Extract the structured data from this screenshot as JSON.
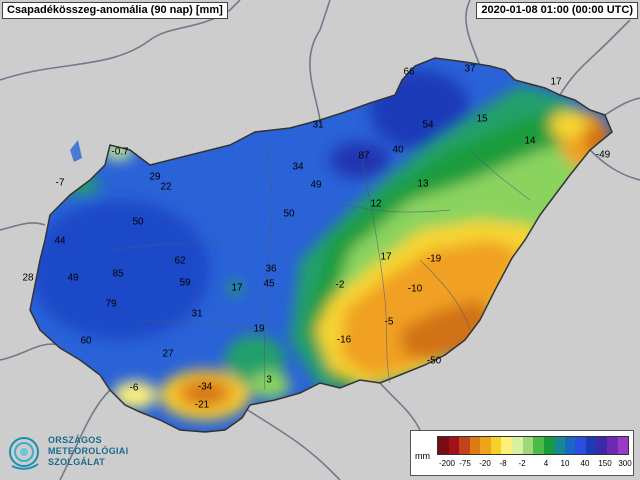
{
  "title": "Csapadékösszeg-anomália (90 nap) [mm]",
  "timestamp": "2020-01-08 01:00 (00:00 UTC)",
  "legend": {
    "unit": "mm",
    "colors": [
      "#7a0d14",
      "#a3121a",
      "#c2421a",
      "#dc7a14",
      "#f0a21a",
      "#f7cf2a",
      "#fbf07a",
      "#d8f0a0",
      "#9ed87a",
      "#4cbb46",
      "#189b3a",
      "#148a8e",
      "#1d66c4",
      "#2a4fe0",
      "#1f3ab8",
      "#3a2aa8",
      "#6a2ab4",
      "#9a3ac4"
    ],
    "ticks": [
      "-200",
      "-75",
      "-20",
      "-8",
      "-2",
      "4",
      "10",
      "40",
      "150",
      "300"
    ]
  },
  "labels": [
    {
      "text": "66"
    },
    {
      "text": "37"
    },
    {
      "text": "17"
    },
    {
      "text": "31"
    },
    {
      "text": "54"
    },
    {
      "text": "15"
    },
    {
      "text": "-0.7"
    },
    {
      "text": "87"
    },
    {
      "text": "40"
    },
    {
      "text": "14"
    },
    {
      "text": "-49"
    },
    {
      "text": "34"
    },
    {
      "text": "29"
    },
    {
      "text": "-7"
    },
    {
      "text": "22"
    },
    {
      "text": "49"
    },
    {
      "text": "13"
    },
    {
      "text": "12"
    },
    {
      "text": "50"
    },
    {
      "text": "50"
    },
    {
      "text": "44"
    },
    {
      "text": "62"
    },
    {
      "text": "-19"
    },
    {
      "text": "17"
    },
    {
      "text": "36"
    },
    {
      "text": "28"
    },
    {
      "text": "49"
    },
    {
      "text": "85"
    },
    {
      "text": "59"
    },
    {
      "text": "17"
    },
    {
      "text": "45"
    },
    {
      "text": "-2"
    },
    {
      "text": "-10"
    },
    {
      "text": "79"
    },
    {
      "text": "31"
    },
    {
      "text": "-5"
    },
    {
      "text": "60"
    },
    {
      "text": "19"
    },
    {
      "text": "-16"
    },
    {
      "text": "27"
    },
    {
      "text": "-50"
    },
    {
      "text": "-6"
    },
    {
      "text": "-34"
    },
    {
      "text": "3"
    },
    {
      "text": "-21"
    }
  ],
  "logo": {
    "line1": "ORSZÁGOS",
    "line2": "METEOROLÓGIAI",
    "line3": "SZOLGÁLAT"
  }
}
